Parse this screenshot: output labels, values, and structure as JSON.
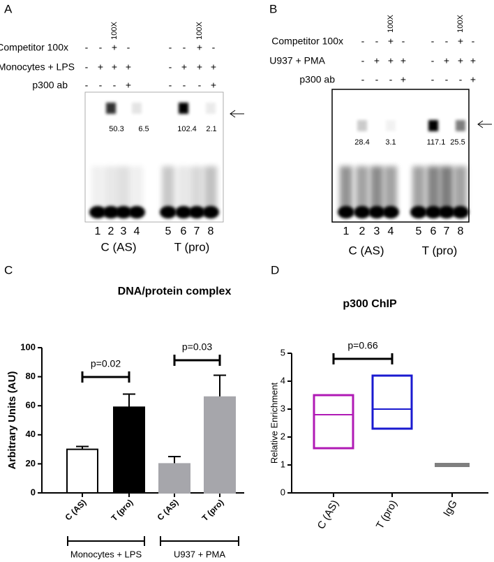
{
  "panels": [
    {
      "letter": "A",
      "rows": [
        {
          "label": "Competitor 100x",
          "signs": [
            "-",
            "-",
            "+",
            "-",
            "-",
            "-",
            "+",
            "-"
          ]
        },
        {
          "label": "Monocytes + LPS",
          "signs": [
            "-",
            "+",
            "+",
            "+",
            "-",
            "+",
            "+",
            "+"
          ]
        },
        {
          "label": "p300 ab",
          "signs": [
            "-",
            "-",
            "-",
            "+",
            "-",
            "-",
            "-",
            "+"
          ]
        }
      ],
      "fold_labels": [
        "100X",
        "100X"
      ],
      "lanes": [
        1,
        2,
        3,
        4,
        5,
        6,
        7,
        8
      ],
      "groups": [
        "C (AS)",
        "T (pro)"
      ],
      "band_values": [
        50.3,
        6.5,
        102.4,
        2.1
      ]
    },
    {
      "letter": "B",
      "rows": [
        {
          "label": "Competitor 100x",
          "signs": [
            "-",
            "-",
            "+",
            "-",
            "-",
            "-",
            "+",
            "-"
          ]
        },
        {
          "label": "U937 + PMA",
          "signs": [
            "-",
            "+",
            "+",
            "+",
            "-",
            "+",
            "+",
            "+"
          ]
        },
        {
          "label": "p300 ab",
          "signs": [
            "-",
            "-",
            "-",
            "+",
            "-",
            "-",
            "-",
            "+"
          ]
        }
      ],
      "fold_labels": [
        "100X",
        "100X"
      ],
      "lanes": [
        1,
        2,
        3,
        4,
        5,
        6,
        7,
        8
      ],
      "groups": [
        "C (AS)",
        "T (pro)"
      ],
      "band_values": [
        28.4,
        3.1,
        117.1,
        25.5
      ]
    }
  ],
  "chart_data": [
    {
      "type": "bar",
      "letter": "C",
      "title": "DNA/protein complex",
      "y_label": "Arbitrary Units (AU)",
      "categories": [
        "C (AS)",
        "T (pro)",
        "C (AS)",
        "T (pro)"
      ],
      "values": [
        30,
        59,
        20,
        66
      ],
      "errors": [
        2,
        9,
        5,
        15
      ],
      "colors": [
        "#ffffff",
        "#000000",
        "#a6a6ab",
        "#a6a6ab"
      ],
      "edgecolor": "#000000",
      "ylim": [
        0,
        100
      ],
      "yticks": [
        0,
        20,
        40,
        60,
        80,
        100
      ],
      "annotations": [
        "p=0.02",
        "p=0.03"
      ],
      "groups": [
        "Monocytes + LPS",
        "U937 + PMA"
      ]
    },
    {
      "type": "box",
      "letter": "D",
      "title": "p300 ChIP",
      "y_label": "Relative Enrichment",
      "categories": [
        "C (AS)",
        "T (pro)",
        "IgG"
      ],
      "low": [
        1.6,
        2.3,
        1
      ],
      "median": [
        2.8,
        3.0,
        1
      ],
      "high": [
        3.5,
        4.2,
        1
      ],
      "colors": [
        "#b01ab5",
        "#1a1ad0",
        "#7f7f7f"
      ],
      "ylim": [
        0,
        5
      ],
      "yticks": [
        0,
        1,
        2,
        3,
        4,
        5
      ],
      "annotations": [
        "p=0.66"
      ]
    }
  ]
}
